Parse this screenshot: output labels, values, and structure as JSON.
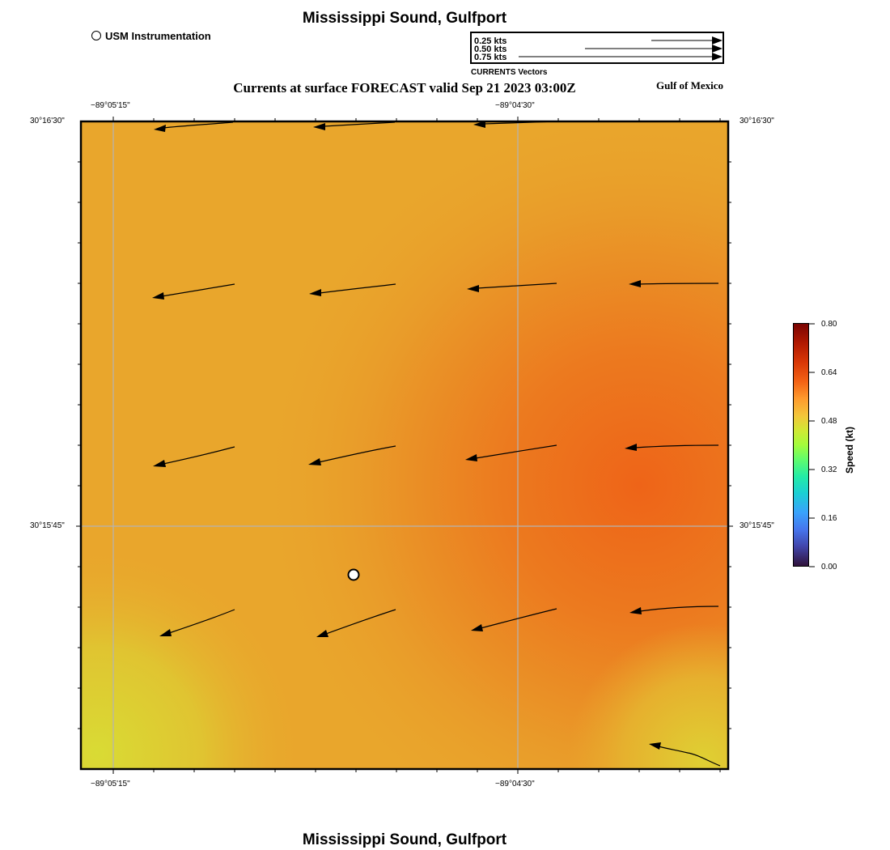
{
  "header": {
    "title": "Mississippi Sound, Gulfport",
    "subtitle": "Currents at surface FORECAST valid Sep 21 2023 03:00Z",
    "region": "Gulf of Mexico",
    "footer_title": "Mississippi Sound, Gulfport"
  },
  "station_legend": {
    "label": "USM Instrumentation"
  },
  "vector_legend": {
    "caption": "CURRENTS Vectors",
    "entries": [
      "0.25 kts",
      "0.50 kts",
      "0.75 kts"
    ],
    "magnitudes": [
      0.25,
      0.5,
      0.75
    ]
  },
  "map": {
    "lon_labels": [
      "−89°05'15\"",
      "−89°04'30\""
    ],
    "lat_labels": [
      "30°16'30\"",
      "30°15'45\""
    ],
    "colors": {
      "speed_high": "#ee6418",
      "speed_mid": "#e9a02a",
      "speed_low": "#d9db34",
      "arrow": "#000000",
      "grid": "#b4b4b4"
    }
  },
  "colorbar": {
    "title": "Speed (kt)",
    "ticks": [
      "0.80",
      "0.64",
      "0.48",
      "0.32",
      "0.16",
      "0.00"
    ],
    "range": [
      0.0,
      0.8
    ]
  }
}
